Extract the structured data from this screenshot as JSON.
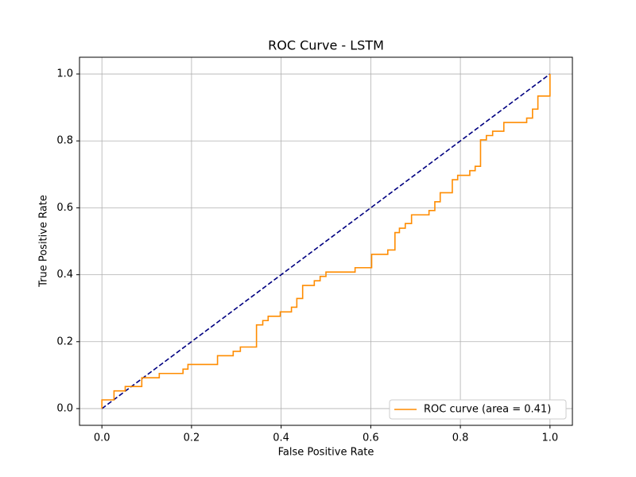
{
  "chart_data": {
    "type": "line",
    "title": "ROC Curve - LSTM",
    "x_label": "False Positive Rate",
    "y_label": "True Positive Rate",
    "xlim": [
      -0.05,
      1.05
    ],
    "ylim": [
      -0.05,
      1.05
    ],
    "xticks": [
      {
        "value": 0,
        "label": "0.0"
      },
      0.2,
      0.4,
      0.6,
      0.8,
      {
        "value": 1,
        "label": "1.0"
      }
    ],
    "yticks": [
      {
        "value": 0,
        "label": "0.0"
      },
      0.2,
      0.4,
      0.6,
      0.8,
      {
        "value": 1,
        "label": "1.0"
      }
    ],
    "grid": true,
    "legend": "lower right",
    "series": [
      {
        "name": "ROC curve (area = 0.41)",
        "color": "#ff8c00",
        "x": [
          0,
          0,
          0.027,
          0.027,
          0.052,
          0.052,
          0.089,
          0.089,
          0.128,
          0.128,
          0.181,
          0.181,
          0.192,
          0.192,
          0.258,
          0.258,
          0.293,
          0.293,
          0.309,
          0.309,
          0.345,
          0.345,
          0.359,
          0.359,
          0.371,
          0.371,
          0.398,
          0.398,
          0.423,
          0.423,
          0.435,
          0.435,
          0.448,
          0.448,
          0.474,
          0.474,
          0.487,
          0.487,
          0.5,
          0.5,
          0.565,
          0.565,
          0.602,
          0.602,
          0.638,
          0.638,
          0.654,
          0.654,
          0.664,
          0.664,
          0.677,
          0.677,
          0.691,
          0.691,
          0.73,
          0.73,
          0.743,
          0.743,
          0.755,
          0.755,
          0.782,
          0.782,
          0.794,
          0.794,
          0.821,
          0.821,
          0.833,
          0.833,
          0.845,
          0.845,
          0.858,
          0.858,
          0.872,
          0.872,
          0.897,
          0.897,
          0.948,
          0.948,
          0.961,
          0.961,
          0.973,
          0.973,
          1,
          1
        ],
        "values": [
          0,
          0.026,
          0.026,
          0.053,
          0.053,
          0.066,
          0.066,
          0.092,
          0.092,
          0.105,
          0.105,
          0.118,
          0.118,
          0.132,
          0.132,
          0.158,
          0.158,
          0.171,
          0.171,
          0.184,
          0.184,
          0.25,
          0.25,
          0.263,
          0.263,
          0.276,
          0.276,
          0.289,
          0.289,
          0.303,
          0.303,
          0.329,
          0.329,
          0.368,
          0.368,
          0.382,
          0.382,
          0.395,
          0.395,
          0.408,
          0.408,
          0.421,
          0.421,
          0.461,
          0.461,
          0.474,
          0.474,
          0.526,
          0.526,
          0.539,
          0.539,
          0.553,
          0.553,
          0.579,
          0.579,
          0.592,
          0.592,
          0.618,
          0.618,
          0.645,
          0.645,
          0.684,
          0.684,
          0.697,
          0.697,
          0.711,
          0.711,
          0.724,
          0.724,
          0.803,
          0.803,
          0.816,
          0.816,
          0.829,
          0.829,
          0.855,
          0.855,
          0.868,
          0.868,
          0.895,
          0.895,
          0.934,
          0.934,
          1
        ]
      },
      {
        "color": "#000080",
        "linestyle": "dashed",
        "x": [
          0,
          1
        ],
        "values": [
          0,
          1
        ]
      }
    ]
  }
}
